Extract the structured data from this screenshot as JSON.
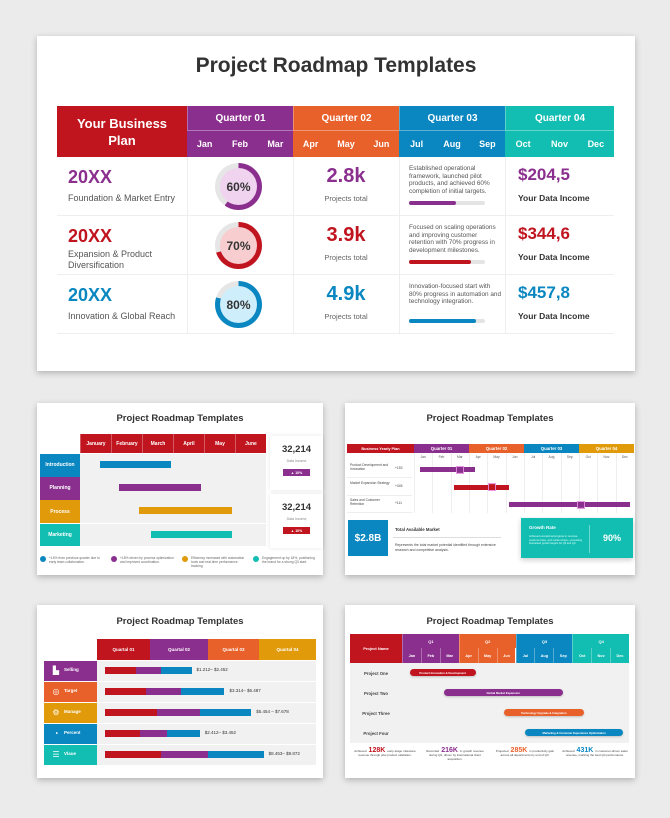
{
  "colors": {
    "red": "#c0141f",
    "purple": "#8b2f8f",
    "orange": "#e8602a",
    "blue": "#0a87c0",
    "teal": "#12bdb2",
    "amber": "#e09a0a"
  },
  "slide1": {
    "title": "Project Roadmap Templates",
    "corner": "Your Business Plan",
    "quarters": [
      {
        "label": "Quarter 01",
        "months": [
          "Jan",
          "Feb",
          "Mar"
        ]
      },
      {
        "label": "Quarter 02",
        "months": [
          "Apr",
          "May",
          "Jun"
        ]
      },
      {
        "label": "Quarter 03",
        "months": [
          "Jul",
          "Aug",
          "Sep"
        ]
      },
      {
        "label": "Quarter 04",
        "months": [
          "Oct",
          "Nov",
          "Dec"
        ]
      }
    ],
    "rows": [
      {
        "year": "20XX",
        "desc": "Foundation & Market Entry",
        "pct": 60,
        "pct_label": "60%",
        "projects": "2.8k",
        "projects_label": "Projects total",
        "note": "Established operational framework, launched pilot products, and achieved 60% completion of initial targets.",
        "progress": 62,
        "income": "$204,5",
        "income_label": "Your Data Income",
        "color": "#8b2f8f",
        "ring_fill": "#efd3ef"
      },
      {
        "year": "20XX",
        "desc": "Expansion & Product Diversification",
        "pct": 70,
        "pct_label": "70%",
        "projects": "3.9k",
        "projects_label": "Projects total",
        "note": "Focused on scaling operations and improving customer retention with 70% progress in development milestones.",
        "progress": 82,
        "income": "$344,6",
        "income_label": "Your Data Income",
        "color": "#c0141f",
        "ring_fill": "#f8cdd0"
      },
      {
        "year": "20XX",
        "desc": "Innovation & Global Reach",
        "pct": 80,
        "pct_label": "80%",
        "projects": "4.9k",
        "projects_label": "Projects total",
        "note": "Innovation-focused start with 80% progress in automation and technology integration.",
        "progress": 88,
        "income": "$457,8",
        "income_label": "Your Data Income",
        "color": "#0a87c0",
        "ring_fill": "#cdeefa"
      }
    ]
  },
  "slide2": {
    "title": "Project Roadmap Templates",
    "months": [
      "January",
      "February",
      "March",
      "April",
      "May",
      "June"
    ],
    "rows": [
      {
        "label": "Introduction",
        "start": 0.65,
        "end": 2.95,
        "color": "#0a87c0"
      },
      {
        "label": "Planning",
        "start": 1.25,
        "end": 3.9,
        "color": "#8b2f8f"
      },
      {
        "label": "Process",
        "start": 1.9,
        "end": 4.9,
        "color": "#e09a0a"
      },
      {
        "label": "Marketing",
        "start": 2.3,
        "end": 4.9,
        "color": "#12bdb2"
      }
    ],
    "stats": [
      {
        "value": "32,214",
        "label": "Data Income",
        "badge": "▲ 10%",
        "color": "#8b2f8f"
      },
      {
        "value": "32,214",
        "label": "Data Income",
        "badge": "▲ 10%",
        "color": "#c0141f"
      }
    ],
    "notes": [
      {
        "text": "+15% from previous quarter due to early team collaboration.",
        "color": "#0a87c0"
      },
      {
        "text": "+18% driven by process optimization and improved coordination.",
        "color": "#8b2f8f"
      },
      {
        "text": "Efficiency increased with automation tools and real-time performance tracking.",
        "color": "#e09a0a"
      },
      {
        "text": "Engagement up by 18%, positioning the brand for a strong Q3 start.",
        "color": "#12bdb2"
      }
    ]
  },
  "slide3": {
    "title": "Project Roadmap Templates",
    "corner": "Business Yearly Plan",
    "quarters": [
      {
        "label": "Quarter 01",
        "color": "#8b2f8f"
      },
      {
        "label": "Quarter 02",
        "color": "#e8602a"
      },
      {
        "label": "Quarter 03",
        "color": "#0a87c0"
      },
      {
        "label": "Quarter 04",
        "color": "#e09a0a"
      }
    ],
    "months": [
      "Jan",
      "Feb",
      "Mar",
      "Apr",
      "May",
      "Jun",
      "Jul",
      "Aug",
      "Sep",
      "Oct",
      "Nov",
      "Dec"
    ],
    "rows": [
      {
        "label": "Product Development and Innovation",
        "value": "+153",
        "start": 0.3,
        "end": 3.3,
        "marker": 2.5,
        "color": "#8b2f8f"
      },
      {
        "label": "Market Expansion Strategy",
        "value": "+345",
        "start": 2.2,
        "end": 5.2,
        "marker": 4.2,
        "color": "#c0141f"
      },
      {
        "label": "Sales and Customer Retention",
        "value": "+111",
        "start": 5.2,
        "end": 11.8,
        "marker": 9.1,
        "color": "#8b2f8f"
      }
    ],
    "tam": {
      "value": "$2.8B",
      "title": "Total Available Market",
      "text": "Represents the total market potential identified through extensive research and competitive analysis."
    },
    "growth": {
      "title": "Growth Rate",
      "text": "Achieved exceptional progress in revenue, customer base, and market share—exceeding forecasted growth targets for Q3 and Q4.",
      "value": "90%"
    }
  },
  "slide4": {
    "title": "Project Roadmap Templates",
    "quarters": [
      {
        "label": "Quartal 01",
        "color": "#c0141f"
      },
      {
        "label": "Quartal 02",
        "color": "#8b2f8f"
      },
      {
        "label": "Quartal 03",
        "color": "#e8602a"
      },
      {
        "label": "Quartal 04",
        "color": "#e09a0a"
      }
    ],
    "rows": [
      {
        "label": "Selling",
        "icon": "bar-chart-icon",
        "glyph": "▙",
        "color": "#8b2f8f",
        "segments": [
          15,
          12,
          15
        ],
        "range": "$1.212– $2.452"
      },
      {
        "label": "Target",
        "icon": "target-icon",
        "glyph": "◎",
        "color": "#e8602a",
        "segments": [
          20,
          17,
          21
        ],
        "range": "$3.314– $6.487"
      },
      {
        "label": "Manage",
        "icon": "gear-icon",
        "glyph": "⚙",
        "color": "#e09a0a",
        "segments": [
          25,
          21,
          25
        ],
        "range": "$5.454 – $7.678"
      },
      {
        "label": "Percent",
        "icon": "pie-chart-icon",
        "glyph": "◔",
        "color": "#0a87c0",
        "segments": [
          17,
          13,
          16
        ],
        "range": "$2.412– $3.452"
      },
      {
        "label": "Vlaue",
        "icon": "database-icon",
        "glyph": "☰",
        "color": "#12bdb2",
        "segments": [
          27,
          23,
          27
        ],
        "range": "$8.453– $9.872"
      }
    ],
    "segment_colors": [
      "#c0141f",
      "#8b2f8f",
      "#0a87c0"
    ]
  },
  "slide5": {
    "title": "Project Roadmap Templates",
    "corner": "Project Name",
    "quarters": [
      {
        "label": "Q1",
        "color": "#8b2f8f"
      },
      {
        "label": "Q2",
        "color": "#e8602a"
      },
      {
        "label": "Q3",
        "color": "#0a87c0"
      },
      {
        "label": "Q4",
        "color": "#12bdb2"
      }
    ],
    "months": [
      "Jan",
      "Feb",
      "Mar",
      "Apr",
      "May",
      "Jun",
      "Jul",
      "Aug",
      "Sep",
      "Oct",
      "Nov",
      "Dec"
    ],
    "rows": [
      {
        "label": "Project One",
        "bar": "Product Innovation & Development",
        "start": 0.4,
        "end": 3.9,
        "color": "#c0141f"
      },
      {
        "label": "Project Two",
        "bar": "Global Market Expansion",
        "start": 2.2,
        "end": 8.5,
        "color": "#8b2f8f"
      },
      {
        "label": "Project Three",
        "bar": "Technology Upgrade & Integration",
        "start": 5.4,
        "end": 9.6,
        "color": "#e8602a"
      },
      {
        "label": "Project Four",
        "bar": "Marketing & Customer Experience Optimization",
        "start": 6.5,
        "end": 11.7,
        "color": "#0a87c0"
      }
    ],
    "stats": [
      {
        "pre": "Achieved",
        "value": "128K",
        "post": "early-stage milestone revenue through pilot product validation.",
        "color": "#c0141f"
      },
      {
        "pre": "Recorded",
        "value": "216K",
        "post": "in growth revenue during Q2, driven by international client acquisition.",
        "color": "#8b2f8f"
      },
      {
        "pre": "Projected",
        "value": "285K",
        "post": "in productivity gain across all departments by end of Q3.",
        "color": "#e8602a"
      },
      {
        "pre": "Achieved",
        "value": "431K",
        "post": "in customer-driven sales revenue, marking the best Q4 performance.",
        "color": "#0a87c0"
      }
    ]
  }
}
